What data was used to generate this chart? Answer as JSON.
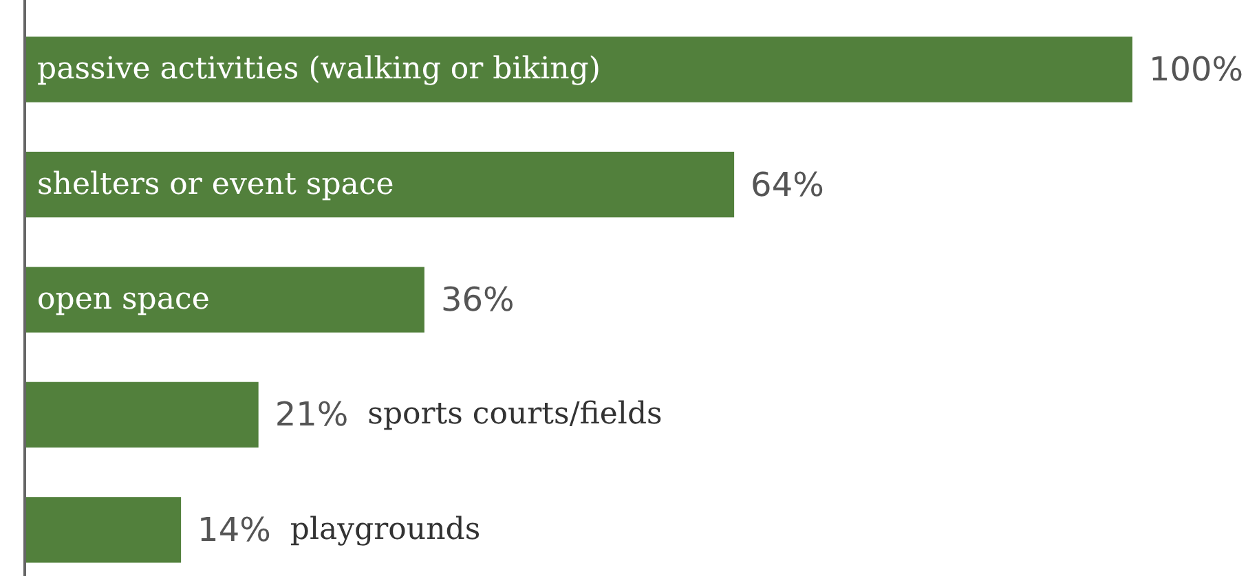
{
  "chart_data": {
    "type": "bar",
    "orientation": "horizontal",
    "categories": [
      "passive activities (walking or biking)",
      "shelters or event space",
      "open space",
      "sports courts/fields",
      "playgrounds"
    ],
    "values": [
      100,
      64,
      36,
      21,
      14
    ],
    "color": "#52803c",
    "value_labels": [
      "100%",
      "64%",
      "36%",
      "21%",
      "14%"
    ]
  }
}
